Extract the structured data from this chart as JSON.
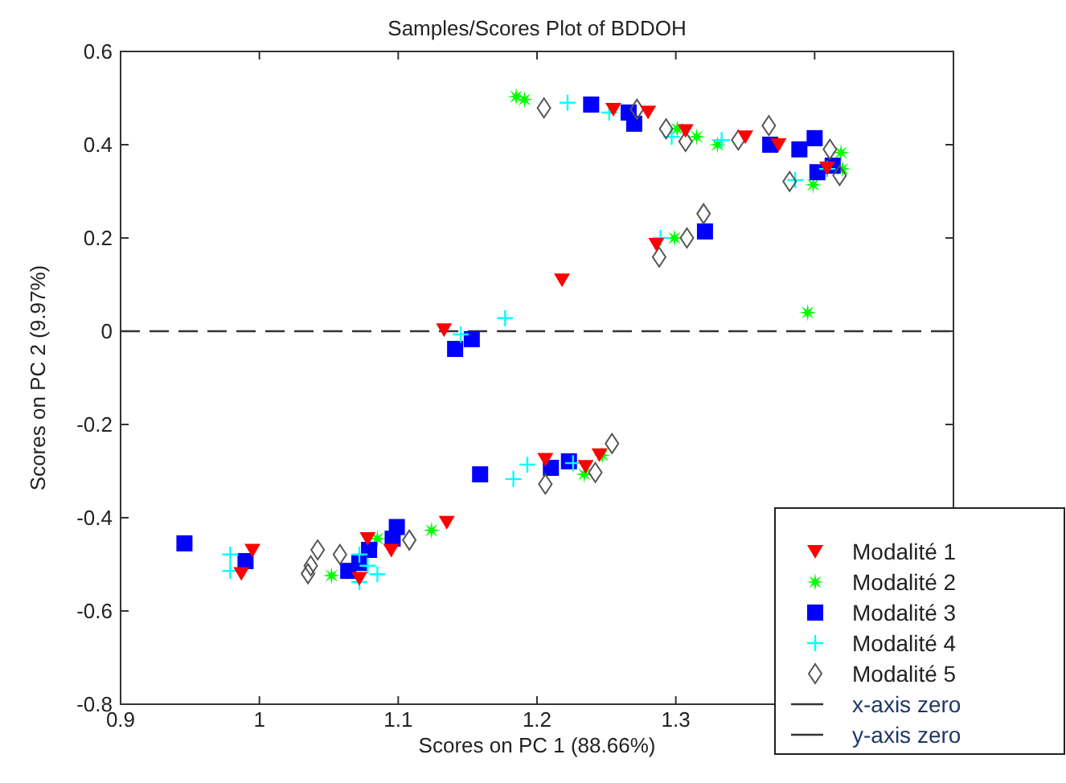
{
  "chart_data": {
    "type": "scatter",
    "title": "Samples/Scores Plot of BDDOH",
    "xlabel": "Scores on PC 1 (88.66%)",
    "ylabel": "Scores on PC 2 (9.97%)",
    "xlim": [
      0.9,
      1.5
    ],
    "xticks": [
      0.9,
      1,
      1.1,
      1.2,
      1.3,
      {
        "value": 1.4,
        "label": null
      }
    ],
    "ylim": [
      -0.8,
      0.6
    ],
    "yticks": [
      -0.8,
      -0.6,
      -0.4,
      -0.2,
      0,
      0.2,
      0.4,
      0.6
    ],
    "grid": false,
    "legend": "bottom right",
    "series": [
      {
        "name": "Modalité 1",
        "color": "#ff0000",
        "marker": "triangle",
        "x": [
          1.255,
          1.28,
          1.307,
          1.35,
          1.374,
          1.409,
          1.286,
          1.218,
          1.133,
          0.995,
          0.987,
          1.078,
          1.095,
          1.072,
          1.135,
          1.206,
          1.235,
          1.245
        ],
        "values": [
          0.476,
          0.47,
          0.43,
          0.417,
          0.4,
          0.35,
          0.186,
          0.11,
          0.003,
          -0.47,
          -0.52,
          -0.445,
          -0.47,
          -0.53,
          -0.41,
          -0.275,
          -0.29,
          -0.265
        ]
      },
      {
        "name": "Modalité 2",
        "color": "#00ff00",
        "marker": "star",
        "x": [
          1.185,
          1.191,
          1.301,
          1.315,
          1.33,
          1.419,
          1.42,
          1.399,
          1.299,
          1.395,
          1.052,
          1.085,
          1.124,
          1.234,
          1.247
        ],
        "values": [
          0.503,
          0.497,
          0.434,
          0.417,
          0.4,
          0.383,
          0.348,
          0.314,
          0.2,
          0.04,
          -0.524,
          -0.445,
          -0.427,
          -0.307,
          -0.266
        ]
      },
      {
        "name": "Modalité 3",
        "color": "#0000ff",
        "marker": "square",
        "x": [
          1.239,
          1.266,
          1.27,
          1.368,
          1.389,
          1.4,
          1.402,
          1.413,
          1.321,
          1.153,
          1.141,
          0.946,
          0.99,
          1.159,
          1.21,
          1.223,
          1.099,
          1.096,
          1.079,
          1.072,
          1.064
        ],
        "values": [
          0.486,
          0.469,
          0.445,
          0.4,
          0.39,
          0.414,
          0.341,
          0.355,
          0.214,
          -0.017,
          -0.038,
          -0.455,
          -0.493,
          -0.307,
          -0.293,
          -0.279,
          -0.42,
          -0.445,
          -0.469,
          -0.497,
          -0.514
        ]
      },
      {
        "name": "Modalité 4",
        "color": "#00ffff",
        "marker": "cross",
        "x": [
          1.222,
          1.252,
          1.297,
          1.333,
          1.409,
          1.386,
          1.289,
          1.177,
          1.145,
          0.979,
          0.979,
          1.183,
          1.193,
          1.226,
          1.072,
          1.078,
          1.085,
          1.072
        ],
        "values": [
          0.49,
          0.469,
          0.417,
          0.41,
          0.348,
          0.324,
          0.2,
          0.028,
          -0.007,
          -0.479,
          -0.514,
          -0.317,
          -0.286,
          -0.283,
          -0.479,
          -0.503,
          -0.521,
          -0.538
        ]
      },
      {
        "name": "Modalité 5",
        "color": "#555555",
        "marker": "diamond",
        "x": [
          1.205,
          1.272,
          1.293,
          1.307,
          1.345,
          1.367,
          1.382,
          1.411,
          1.418,
          1.288,
          1.308,
          1.32,
          1.035,
          1.042,
          1.058,
          1.108,
          1.206,
          1.242,
          1.254,
          1.037
        ],
        "values": [
          0.479,
          0.476,
          0.434,
          0.407,
          0.41,
          0.441,
          0.321,
          0.39,
          0.334,
          0.159,
          0.2,
          0.252,
          -0.52,
          -0.469,
          -0.479,
          -0.448,
          -0.328,
          -0.303,
          -0.241,
          -0.503
        ]
      }
    ],
    "ref_lines": [
      {
        "axis": "y",
        "value": 0,
        "label": "x-axis zero",
        "color": "#333333",
        "line_style": "dashed"
      }
    ],
    "annotations": [
      "y-axis zero"
    ]
  }
}
